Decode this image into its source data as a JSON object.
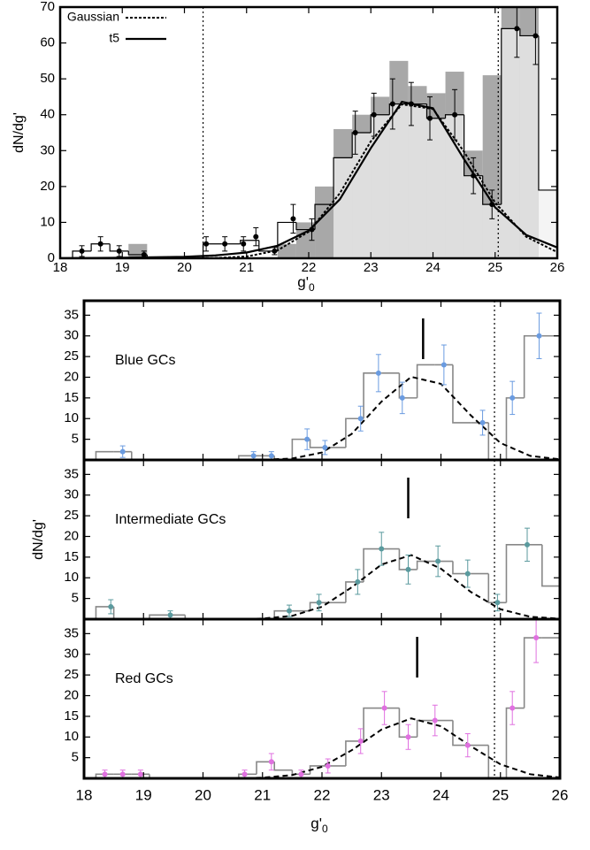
{
  "chart_data": [
    {
      "type": "histogram",
      "ylabel": "dN/dg'",
      "xlabel": "g'",
      "xlabel_sub": "0",
      "xlim": [
        18,
        26
      ],
      "xticks": [
        18,
        19,
        20,
        21,
        22,
        23,
        24,
        25,
        26
      ],
      "ylim": [
        0,
        70
      ],
      "yticks": [
        0,
        10,
        20,
        30,
        40,
        50,
        60,
        70
      ],
      "bins": [
        18.2,
        18.5,
        18.8,
        19.1,
        19.4,
        19.7,
        20.0,
        20.3,
        20.6,
        20.9,
        21.2,
        21.5,
        21.8,
        22.1,
        22.4,
        22.7,
        23.0,
        23.3,
        23.6,
        23.9,
        24.2,
        24.5,
        24.8,
        25.1,
        25.4,
        25.7,
        26.0
      ],
      "counts": [
        2,
        4,
        2,
        1,
        0,
        0,
        0,
        4,
        4,
        5,
        2,
        10,
        8,
        15,
        28,
        35,
        40,
        43,
        43,
        39,
        40,
        23,
        15,
        64,
        62,
        19
      ],
      "shaded_counts": [
        0,
        0,
        0,
        4,
        0,
        0,
        0,
        0,
        0,
        0,
        0,
        4,
        10,
        20,
        36,
        40,
        45,
        55,
        48,
        46,
        52,
        30,
        51,
        70,
        70,
        0
      ],
      "points": {
        "color": "#000000",
        "x": [
          18.35,
          18.65,
          18.95,
          19.35,
          20.35,
          20.65,
          20.95,
          21.15,
          21.45,
          21.75,
          22.05,
          22.75,
          23.05,
          23.35,
          23.65,
          23.95,
          24.35,
          24.65,
          24.95,
          25.35,
          25.65
        ],
        "values": [
          2,
          4,
          2,
          1,
          4,
          4,
          4,
          6,
          2,
          11,
          8,
          35,
          40,
          43,
          43,
          39,
          40,
          23,
          15,
          64,
          62
        ],
        "errors": [
          1.5,
          2,
          1.5,
          1,
          2,
          2,
          2,
          2.5,
          1,
          4,
          3,
          6,
          6,
          7,
          6,
          6,
          7,
          5,
          4,
          8,
          8
        ]
      },
      "curve_x": [
        18,
        19,
        20,
        20.5,
        21,
        21.5,
        22,
        22.5,
        23,
        23.5,
        24,
        24.5,
        25,
        25.5,
        26
      ],
      "series": [
        {
          "name": "Gaussian",
          "style": "dotted",
          "values": [
            0,
            0,
            0.01,
            0.08,
            0.49,
            2.2,
            7.4,
            18.1,
            32.6,
            42.9,
            41.6,
            29.7,
            15.5,
            6.0,
            1.7
          ]
        },
        {
          "name": "t5",
          "style": "solid",
          "values": [
            0.05,
            0.15,
            0.41,
            0.8,
            1.6,
            3.5,
            7.7,
            16.4,
            30.7,
            43.6,
            41.8,
            27.6,
            14.2,
            6.5,
            3.0
          ]
        }
      ],
      "limits": [
        20.3,
        25.05
      ]
    },
    {
      "type": "histogram",
      "label": "Blue GCs",
      "xlim": [
        18,
        26
      ],
      "xticks": [
        18,
        19,
        20,
        21,
        22,
        23,
        24,
        25,
        26
      ],
      "ylim": [
        0,
        38.5
      ],
      "yticks": [
        5,
        10,
        15,
        20,
        25,
        30,
        35
      ],
      "bins": [
        18.2,
        18.5,
        18.8,
        19.1,
        19.4,
        19.7,
        20.0,
        20.3,
        20.6,
        20.9,
        21.2,
        21.5,
        21.8,
        22.1,
        22.4,
        22.7,
        23.0,
        23.3,
        23.6,
        23.9,
        24.2,
        24.5,
        24.8,
        25.1,
        25.4,
        25.7,
        26.0
      ],
      "counts": [
        2,
        2,
        0,
        0,
        0,
        0,
        0,
        0,
        1,
        1,
        0,
        5,
        3,
        3,
        10,
        21,
        21,
        15,
        23,
        23,
        9,
        9,
        0,
        15,
        30,
        30
      ],
      "points": {
        "color": "#6a9be0",
        "x": [
          18.65,
          20.85,
          21.15,
          21.75,
          22.05,
          22.65,
          22.95,
          23.35,
          24.05,
          24.7,
          25.2,
          25.65
        ],
        "values": [
          2,
          1,
          1,
          5,
          3,
          10,
          21,
          15,
          23,
          9,
          15,
          30
        ],
        "errors": [
          1.4,
          1,
          1,
          2.5,
          1.7,
          3,
          4.5,
          3.8,
          4.8,
          3,
          4,
          5.5
        ]
      },
      "curve": {
        "x": [
          20,
          20.5,
          21,
          21.5,
          22,
          22.5,
          23,
          23.5,
          24,
          24.5,
          25,
          25.5,
          26
        ],
        "values": [
          0,
          0.003,
          0.04,
          0.34,
          1.8,
          6.3,
          14.1,
          20.1,
          18.4,
          10.8,
          4.1,
          0.98,
          0.15
        ]
      },
      "peak": 23.7,
      "limits": [
        24.9
      ]
    },
    {
      "type": "histogram",
      "label": "Intermediate GCs",
      "ylabel": "dN/dg'",
      "xlim": [
        18,
        26
      ],
      "xticks": [
        18,
        19,
        20,
        21,
        22,
        23,
        24,
        25,
        26
      ],
      "ylim": [
        0,
        38.5
      ],
      "yticks": [
        5,
        10,
        15,
        20,
        25,
        30,
        35
      ],
      "bins": [
        18.2,
        18.5,
        18.8,
        19.1,
        19.4,
        19.7,
        20.0,
        20.3,
        20.6,
        20.9,
        21.2,
        21.5,
        21.8,
        22.1,
        22.4,
        22.7,
        23.0,
        23.3,
        23.6,
        23.9,
        24.2,
        24.5,
        24.8,
        25.1,
        25.4,
        25.7,
        26.0
      ],
      "counts": [
        3,
        0,
        0,
        1,
        1,
        0,
        0,
        0,
        0,
        0,
        2,
        2,
        4,
        4,
        9,
        17,
        17,
        12,
        14,
        14,
        11,
        11,
        4,
        18,
        18,
        8
      ],
      "points": {
        "color": "#5a9a9e",
        "x": [
          18.45,
          19.45,
          21.45,
          21.95,
          22.6,
          23.0,
          23.45,
          23.95,
          24.45,
          24.95,
          25.45
        ],
        "values": [
          3,
          1,
          2,
          4,
          9,
          17,
          12,
          14,
          11,
          4,
          18
        ],
        "errors": [
          1.7,
          1,
          1.4,
          2,
          3,
          4,
          3.5,
          3.7,
          3.3,
          2,
          4
        ]
      },
      "curve": {
        "x": [
          20,
          20.5,
          21,
          21.5,
          22,
          22.5,
          23,
          23.5,
          24,
          24.5,
          25,
          25.5,
          26
        ],
        "values": [
          0,
          0.02,
          0.14,
          0.79,
          3.0,
          7.7,
          13.2,
          15.5,
          12.2,
          6.6,
          2.4,
          0.58,
          0.1
        ]
      },
      "peak": 23.45,
      "limits": [
        24.9
      ]
    },
    {
      "type": "histogram",
      "label": "Red GCs",
      "xlabel": "g'",
      "xlabel_sub": "0",
      "xlim": [
        18,
        26
      ],
      "xticks": [
        18,
        19,
        20,
        21,
        22,
        23,
        24,
        25,
        26
      ],
      "ylim": [
        0,
        38.5
      ],
      "yticks": [
        5,
        10,
        15,
        20,
        25,
        30,
        35
      ],
      "bins": [
        18.2,
        18.5,
        18.8,
        19.1,
        19.4,
        19.7,
        20.0,
        20.3,
        20.6,
        20.9,
        21.2,
        21.5,
        21.8,
        22.1,
        22.4,
        22.7,
        23.0,
        23.3,
        23.6,
        23.9,
        24.2,
        24.5,
        24.8,
        25.1,
        25.4,
        25.7,
        26.0
      ],
      "counts": [
        1,
        1,
        1,
        0,
        0,
        0,
        0,
        0,
        1,
        4,
        2,
        1,
        3,
        3,
        9,
        17,
        17,
        10,
        14,
        14,
        8,
        8,
        0,
        17,
        34,
        34
      ],
      "points": {
        "color": "#e070e0",
        "x": [
          18.35,
          18.65,
          18.95,
          20.7,
          21.15,
          21.65,
          22.1,
          22.65,
          23.05,
          23.45,
          23.9,
          24.45,
          25.2,
          25.6
        ],
        "values": [
          1,
          1,
          1,
          1,
          4,
          1,
          3,
          9,
          17,
          10,
          14,
          8,
          17,
          34
        ],
        "errors": [
          1,
          1,
          1,
          1,
          2,
          1,
          1.7,
          3,
          4,
          3,
          3.7,
          2.8,
          4,
          6
        ]
      },
      "curve": {
        "x": [
          20,
          20.5,
          21,
          21.5,
          22,
          22.5,
          23,
          23.5,
          24,
          24.5,
          25,
          25.5,
          26
        ],
        "values": [
          0,
          0.02,
          0.16,
          0.79,
          2.8,
          6.8,
          11.8,
          14.5,
          12.6,
          7.8,
          3.4,
          1.0,
          0.2
        ]
      },
      "peak": 23.6,
      "limits": [
        24.9
      ]
    }
  ]
}
